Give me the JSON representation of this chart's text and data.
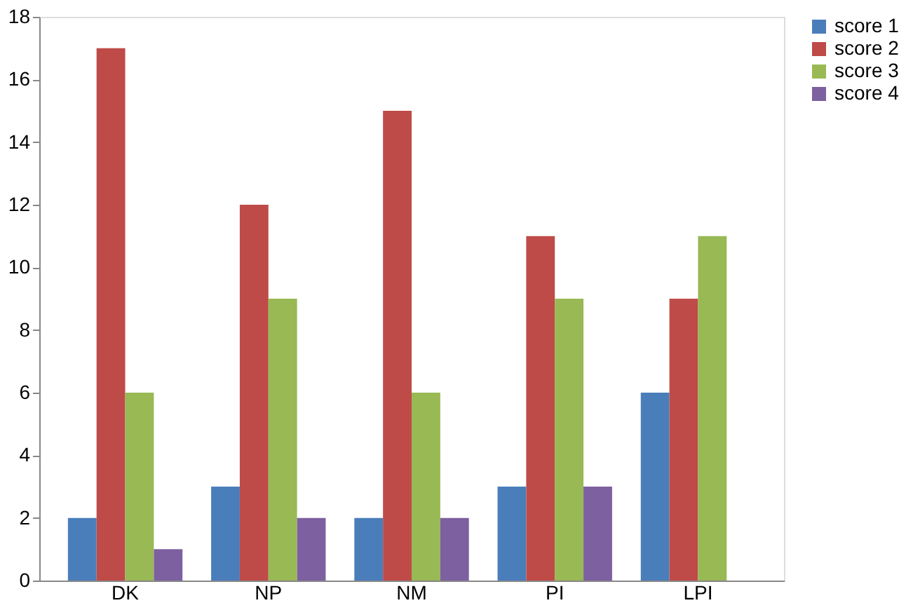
{
  "chart_data": {
    "type": "bar",
    "categories": [
      "DK",
      "NP",
      "NM",
      "PI",
      "LPI"
    ],
    "series": [
      {
        "name": "score 1",
        "color": "#4a7ebb",
        "values": [
          2,
          3,
          2,
          3,
          6
        ]
      },
      {
        "name": "score 2",
        "color": "#be4b48",
        "values": [
          17,
          12,
          15,
          11,
          9
        ]
      },
      {
        "name": "score 3",
        "color": "#98b954",
        "values": [
          6,
          9,
          6,
          9,
          11
        ]
      },
      {
        "name": "score 4",
        "color": "#7d60a0",
        "values": [
          1,
          2,
          2,
          3,
          null
        ]
      }
    ],
    "ylim": [
      0,
      18
    ],
    "yticks": [
      0,
      2,
      4,
      6,
      8,
      10,
      12,
      14,
      16,
      18
    ],
    "grid": false,
    "legend": "right"
  }
}
